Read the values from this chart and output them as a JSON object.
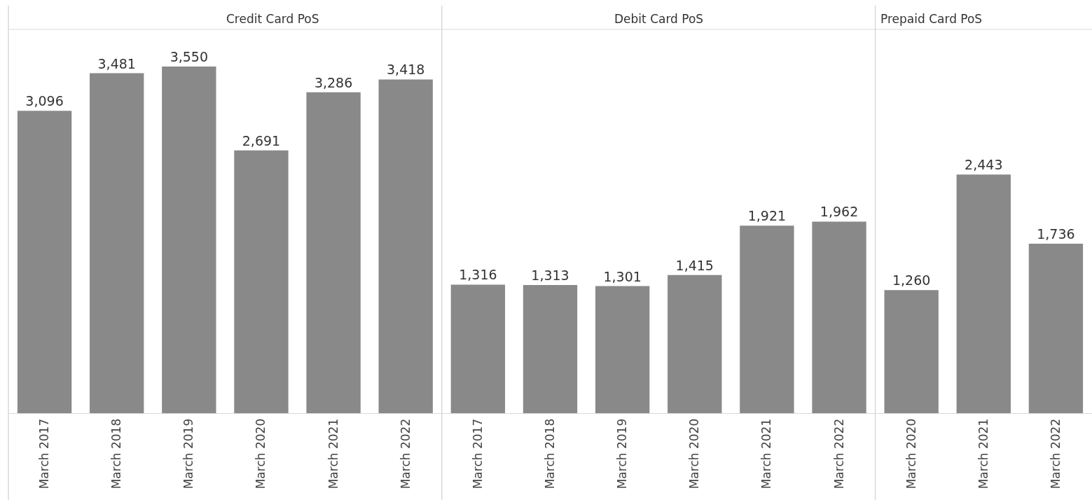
{
  "chart_data": [
    {
      "type": "bar",
      "title": "Credit Card PoS",
      "categories": [
        "March 2017",
        "March 2018",
        "March 2019",
        "March 2020",
        "March 2021",
        "March 2022"
      ],
      "values": [
        3096,
        3481,
        3550,
        2691,
        3286,
        3418
      ],
      "value_labels": [
        "3,096",
        "3,481",
        "3,550",
        "2,691",
        "3,286",
        "3,418"
      ],
      "color": "#898989",
      "tick_labels": "x"
    },
    {
      "type": "bar",
      "title": "Debit Card PoS",
      "categories": [
        "March 2017",
        "March 2018",
        "March 2019",
        "March 2020",
        "March 2021",
        "March 2022"
      ],
      "values": [
        1316,
        1313,
        1301,
        1415,
        1921,
        1962
      ],
      "value_labels": [
        "1,316",
        "1,313",
        "1,301",
        "1,415",
        "1,921",
        "1,962"
      ],
      "color": "#898989",
      "tick_labels": "x"
    },
    {
      "type": "bar",
      "title": "Prepaid Card PoS",
      "categories": [
        "March 2020",
        "March 2021",
        "March 2022"
      ],
      "values": [
        1260,
        2443,
        1736
      ],
      "value_labels": [
        "1,260",
        "2,443",
        "1,736"
      ],
      "color": "#898989",
      "tick_labels": "x"
    }
  ]
}
